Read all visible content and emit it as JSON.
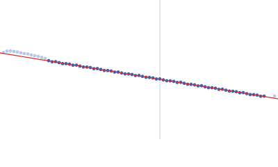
{
  "chart_data": {
    "type": "scatter",
    "xlim": [
      0,
      400
    ],
    "ylim": [
      0,
      200
    ],
    "vline": {
      "x": 230,
      "color": "#c9d2ea"
    },
    "fit": {
      "color": "#d42a2a",
      "x": [
        0,
        400
      ],
      "values": [
        124,
        58
      ]
    },
    "series": [
      {
        "color": "#b9c9e9",
        "x": [
          5,
          10,
          15,
          20,
          25,
          30,
          35,
          40,
          45,
          50,
          55,
          60,
          65,
          395
        ],
        "values": [
          124.5,
          126.5,
          126.8,
          126.0,
          125.2,
          124.0,
          123.0,
          122.5,
          121.0,
          120.0,
          119.0,
          117.5,
          116.0,
          62.0
        ]
      },
      {
        "color": "#3d66b5",
        "x": [
          70,
          75,
          80,
          85,
          90,
          95,
          100,
          105,
          110,
          115,
          120,
          125,
          130,
          135,
          140,
          145,
          150,
          155,
          160,
          165,
          170,
          175,
          180,
          185,
          190,
          195,
          200,
          205,
          210,
          215,
          220,
          225,
          230,
          235,
          240,
          245,
          250,
          255,
          260,
          265,
          270,
          275,
          280,
          285,
          290,
          295,
          300,
          305,
          310,
          315,
          320,
          325,
          330,
          335,
          340,
          345,
          350,
          355,
          360,
          365,
          370,
          375,
          380
        ],
        "values": [
          112.8,
          111.2,
          111.4,
          110.0,
          108.6,
          108.5,
          107.8,
          106.3,
          106.4,
          105.0,
          103.7,
          103.6,
          102.9,
          101.3,
          101.5,
          100.1,
          98.7,
          98.6,
          97.9,
          96.4,
          96.5,
          95.1,
          93.8,
          93.7,
          93.0,
          91.4,
          91.6,
          90.2,
          88.9,
          88.7,
          88.0,
          86.5,
          86.6,
          85.2,
          83.9,
          83.8,
          83.1,
          81.5,
          81.7,
          80.3,
          78.9,
          78.8,
          78.1,
          76.6,
          76.8,
          75.3,
          74.0,
          73.9,
          73.2,
          71.6,
          71.8,
          70.4,
          69.1,
          68.9,
          68.2,
          66.7,
          66.9,
          65.4,
          64.1,
          64.0,
          63.3,
          61.7,
          61.9
        ]
      }
    ]
  }
}
